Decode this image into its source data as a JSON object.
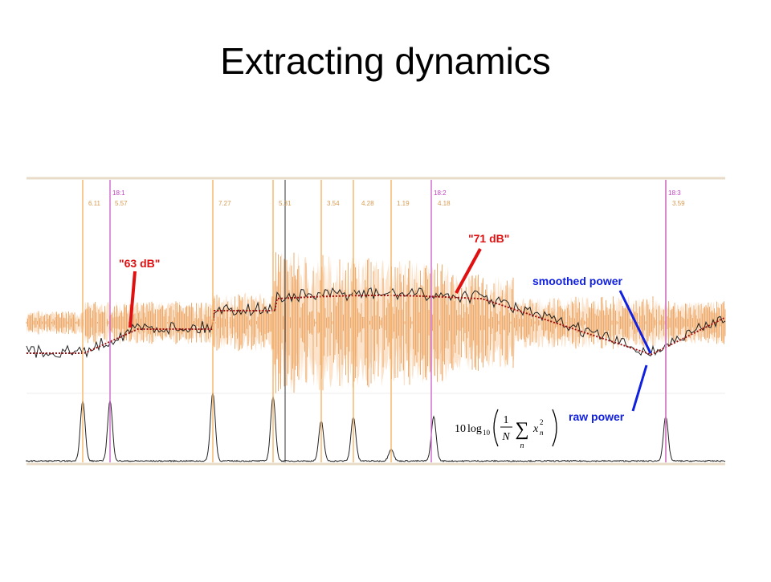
{
  "title": "Extracting dynamics",
  "beat_labels": [
    "18:1",
    "18:2",
    "18:3"
  ],
  "interval_labels": [
    "6.11",
    "5.57",
    "7.27",
    "5.31",
    "3.54",
    "4.28",
    "1.19",
    "4.18",
    "3.59"
  ],
  "annotations": {
    "soft": "\"63 dB\"",
    "loud": "\"71 dB\"",
    "smoothed": "smoothed power",
    "raw": "raw power"
  },
  "formula": {
    "factor": "10",
    "log": "log",
    "base": "10",
    "numerator": "1",
    "denominator": "N",
    "sum": "∑",
    "index": "n",
    "variable": "x",
    "subscript": "n",
    "power": "2"
  }
}
